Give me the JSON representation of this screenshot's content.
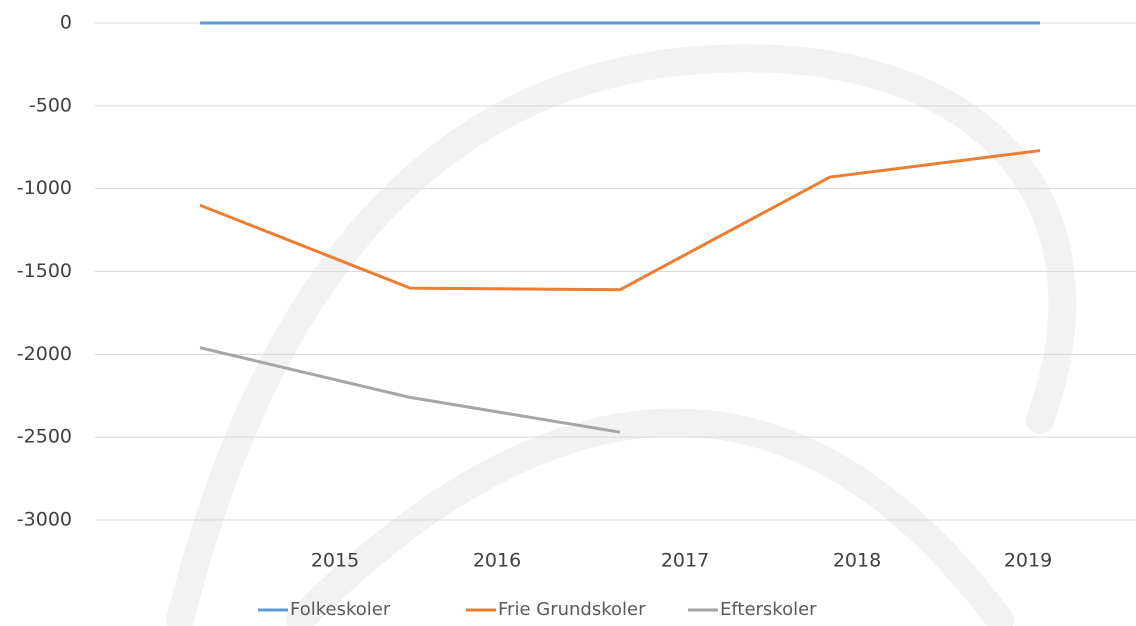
{
  "chart_data": {
    "type": "line",
    "categories": [
      "2015",
      "2016",
      "2017",
      "2018",
      "2019"
    ],
    "series": [
      {
        "name": "Folkeskoler",
        "color": "#5b9bd5",
        "values": [
          0,
          0,
          0,
          0,
          0
        ]
      },
      {
        "name": "Frie Grundskoler",
        "color": "#ed7d31",
        "values": [
          -1100,
          -1600,
          -1610,
          -930,
          -770
        ]
      },
      {
        "name": "Efterskoler",
        "color": "#a5a5a5",
        "values": [
          -1960,
          -2260,
          -2470,
          null,
          null
        ]
      }
    ],
    "ylim": [
      -3000,
      0
    ],
    "yticks": [
      0,
      -500,
      -1000,
      -1500,
      -2000,
      -2500,
      -3000
    ],
    "grid": true,
    "legend": "bottom"
  }
}
